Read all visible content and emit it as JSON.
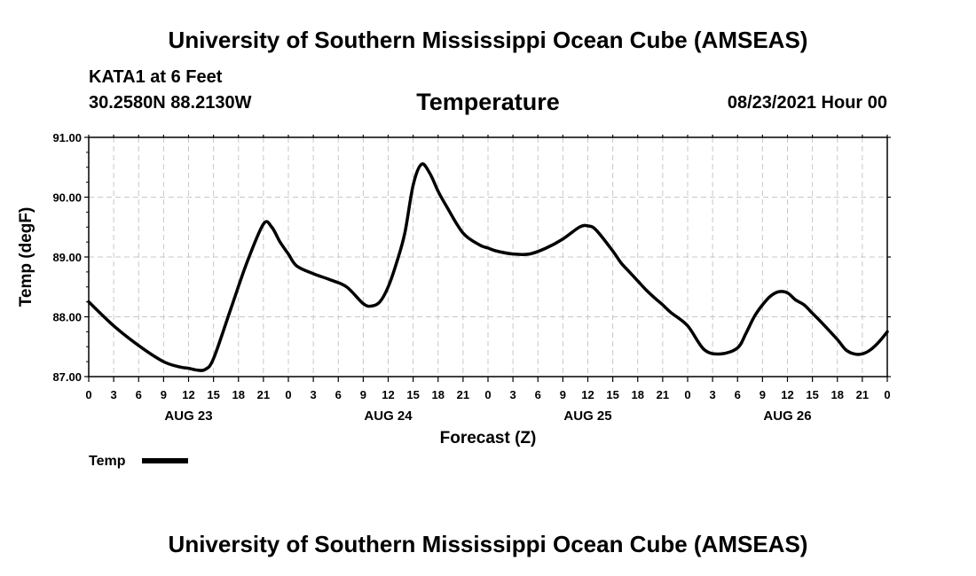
{
  "header": {
    "title": "University of Southern Mississippi Ocean Cube (AMSEAS)",
    "station": "KATA1 at 6 Feet",
    "coordinates": "30.2580N  88.2130W",
    "run_time": "08/23/2021 Hour 00"
  },
  "footer": {
    "title": "University of Southern Mississippi Ocean Cube (AMSEAS)"
  },
  "chart_data": {
    "type": "line",
    "title": "Temperature",
    "xlabel": "Forecast (Z)",
    "ylabel": "Temp (degF)",
    "xlim": [
      0,
      96
    ],
    "ylim": [
      87.0,
      91.0
    ],
    "y_ticks": [
      "87.00",
      "88.00",
      "89.00",
      "90.00",
      "91.00"
    ],
    "x_tick_labels": [
      "0",
      "3",
      "6",
      "9",
      "12",
      "15",
      "18",
      "21",
      "0",
      "3",
      "6",
      "9",
      "12",
      "15",
      "18",
      "21",
      "0",
      "3",
      "6",
      "9",
      "12",
      "15",
      "18",
      "21",
      "0",
      "3",
      "6",
      "9",
      "12",
      "15",
      "18",
      "21",
      "0"
    ],
    "day_labels": [
      "AUG 23",
      "AUG 24",
      "AUG 25",
      "AUG 26"
    ],
    "grid": true,
    "legend": {
      "label": "Temp",
      "placement": "bottom-left"
    },
    "series": [
      {
        "name": "Temp",
        "x": [
          0,
          3,
          6,
          9,
          11,
          12,
          13,
          14,
          15,
          17,
          19,
          21,
          22,
          23,
          24,
          25,
          27,
          29,
          31,
          33,
          34,
          35,
          36,
          37,
          38,
          39,
          40,
          41,
          42,
          43,
          45,
          47,
          48,
          49,
          51,
          53,
          55,
          57,
          59,
          60,
          61,
          63,
          64,
          65,
          66,
          67,
          68,
          69,
          70,
          72,
          74,
          76,
          78,
          79,
          80,
          81,
          82,
          83,
          84,
          85,
          86,
          87,
          88,
          90,
          91,
          92,
          93,
          94,
          95,
          96
        ],
        "values": [
          88.25,
          87.85,
          87.52,
          87.25,
          87.16,
          87.14,
          87.11,
          87.12,
          87.3,
          88.1,
          88.9,
          89.55,
          89.5,
          89.25,
          89.05,
          88.85,
          88.72,
          88.62,
          88.5,
          88.22,
          88.18,
          88.25,
          88.5,
          88.9,
          89.4,
          90.2,
          90.55,
          90.4,
          90.1,
          89.85,
          89.4,
          89.2,
          89.15,
          89.1,
          89.05,
          89.05,
          89.15,
          89.3,
          89.5,
          89.52,
          89.45,
          89.1,
          88.9,
          88.75,
          88.6,
          88.45,
          88.32,
          88.2,
          88.07,
          87.85,
          87.45,
          87.38,
          87.48,
          87.72,
          88.0,
          88.2,
          88.35,
          88.42,
          88.4,
          88.28,
          88.2,
          88.06,
          87.92,
          87.62,
          87.45,
          87.38,
          87.38,
          87.45,
          87.58,
          87.75
        ]
      }
    ]
  }
}
